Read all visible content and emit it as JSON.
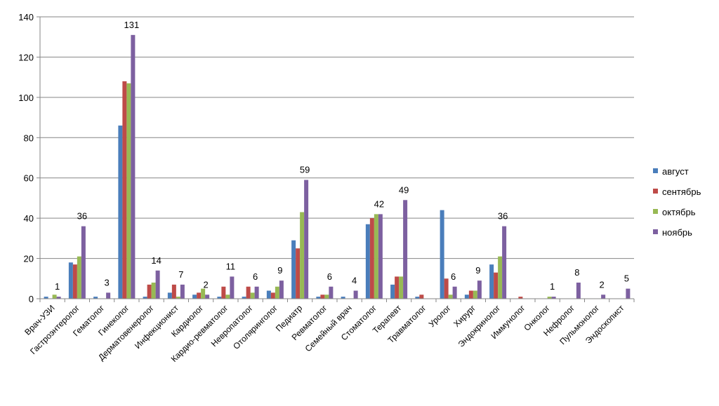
{
  "chart_data": {
    "type": "bar",
    "title": "",
    "xlabel": "",
    "ylabel": "",
    "ylim": [
      0,
      140
    ],
    "yticks": [
      0,
      20,
      40,
      60,
      80,
      100,
      120,
      140
    ],
    "grid": true,
    "legend_position": "right",
    "categories": [
      "Врач-УЗИ",
      "Гастроэнтеролог",
      "Гематолог",
      "Гинеколог",
      "Дерматовенеролог",
      "Инфекционист",
      "Кардиолог",
      "Кардио-ревматолог",
      "Невропатолог",
      "Отоляринголог",
      "Педиатр",
      "Ревматолог",
      "Семейный врач",
      "Стоматолог",
      "Терапевт",
      "Травматолог",
      "Уролог",
      "Хирург",
      "Эндокринолог",
      "Иммунолог",
      "Онколог",
      "Нефролог",
      "Пульмонолог",
      "Эндоскопист"
    ],
    "series": [
      {
        "name": "август",
        "color": "#4a7ebb",
        "values": [
          1,
          18,
          1,
          86,
          1,
          3,
          2,
          1,
          1,
          4,
          29,
          1,
          1,
          37,
          7,
          1,
          44,
          2,
          17,
          0,
          0,
          0,
          0,
          0
        ]
      },
      {
        "name": "сентябрь",
        "color": "#be4b48",
        "values": [
          0,
          17,
          0,
          108,
          7,
          7,
          3,
          6,
          6,
          3,
          25,
          2,
          0,
          40,
          11,
          2,
          10,
          4,
          13,
          1,
          0,
          0,
          0,
          0
        ]
      },
      {
        "name": "октябрь",
        "color": "#98b954",
        "values": [
          2,
          21,
          0,
          107,
          8,
          1,
          5,
          2,
          3,
          6,
          43,
          2,
          0,
          42,
          11,
          0,
          2,
          4,
          21,
          0,
          1,
          0,
          0,
          0
        ]
      },
      {
        "name": "ноябрь",
        "color": "#7d60a0",
        "values": [
          1,
          36,
          3,
          131,
          14,
          7,
          2,
          11,
          6,
          9,
          59,
          6,
          4,
          42,
          49,
          0,
          6,
          9,
          36,
          0,
          1,
          8,
          2,
          5
        ]
      }
    ],
    "data_labels": {
      "series": "ноябрь",
      "values": [
        "1",
        "36",
        "3",
        "131",
        "14",
        "7",
        "2",
        "11",
        "6",
        "9",
        "59",
        "6",
        "4",
        "42",
        "49",
        "",
        "6",
        "9",
        "36",
        "",
        "1",
        "8",
        "2",
        "5"
      ]
    }
  }
}
